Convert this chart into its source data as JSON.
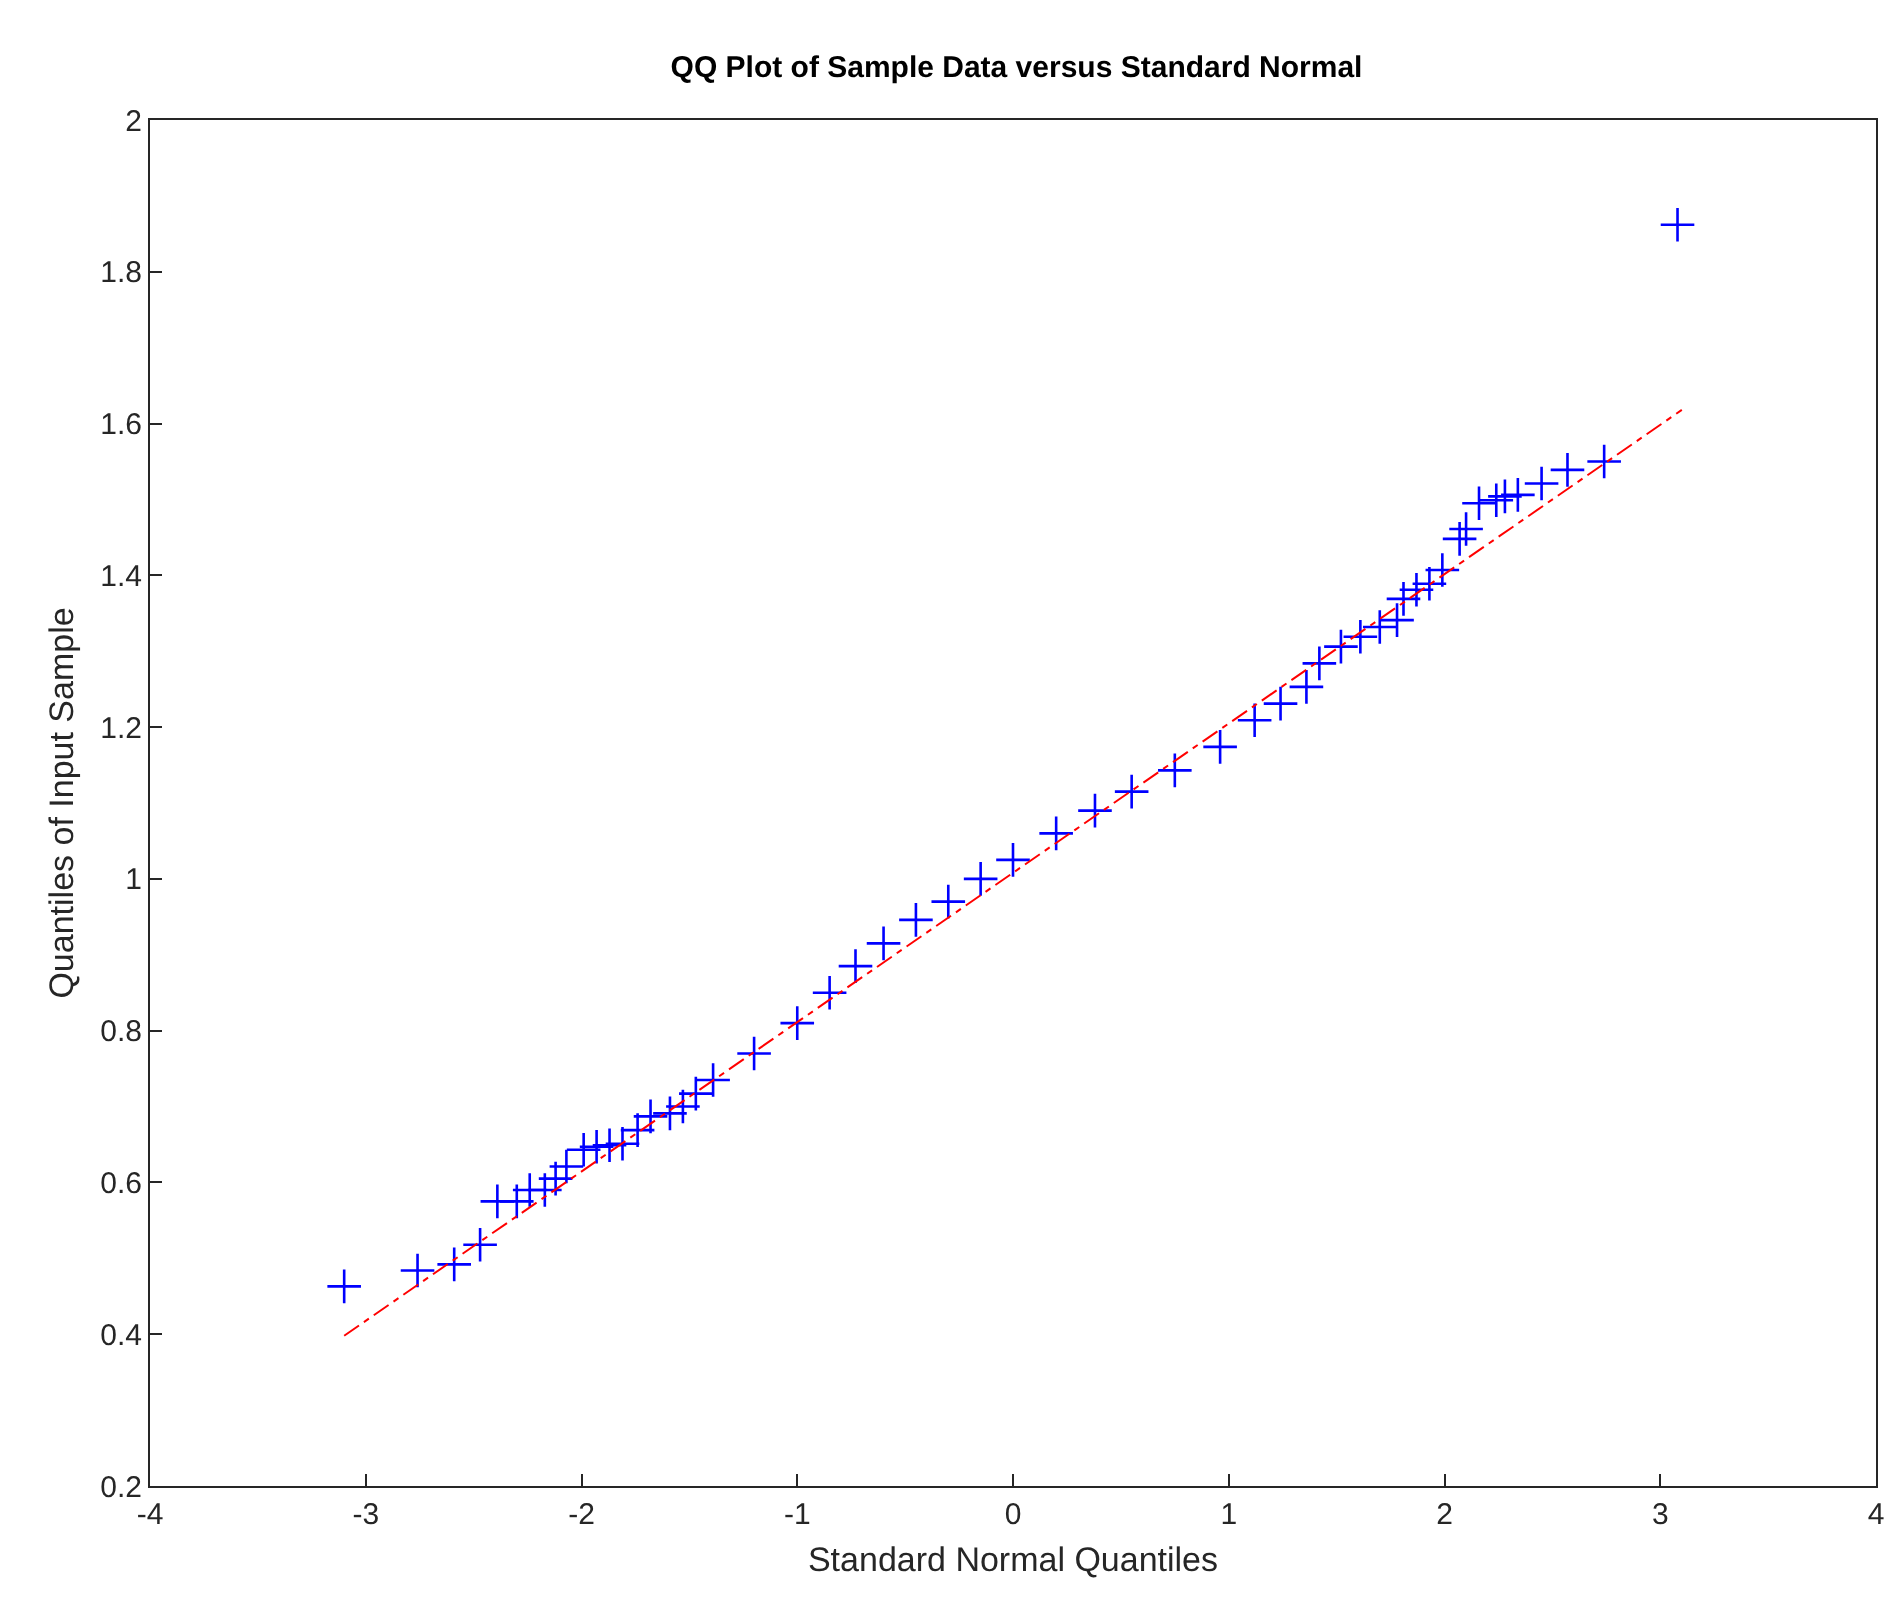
{
  "chart_data": {
    "type": "scatter",
    "title": "QQ Plot of Sample Data versus Standard Normal",
    "xlabel": "Standard Normal Quantiles",
    "ylabel": "Quantiles of Input Sample",
    "xlim": [
      -4,
      4
    ],
    "xticks": [
      -4,
      -3,
      -2,
      -1,
      0,
      1,
      2,
      3,
      4
    ],
    "ylim": [
      0.2,
      2
    ],
    "yticks": [
      0.2,
      0.4,
      0.6,
      0.8,
      1,
      1.2,
      1.4,
      1.6,
      1.8,
      2
    ],
    "grid": false,
    "legend": false,
    "series": [
      {
        "marker": "cross",
        "color": "#0000ff",
        "x": [
          -3.1,
          -2.76,
          -2.59,
          -2.47,
          -2.39,
          -2.3,
          -2.24,
          -2.17,
          -2.12,
          -2.07,
          -1.99,
          -1.93,
          -1.87,
          -1.81,
          -1.74,
          -1.68,
          -1.59,
          -1.53,
          -1.47,
          -1.39,
          -1.2,
          -1.0,
          -0.85,
          -0.73,
          -0.6,
          -0.45,
          -0.3,
          -0.15,
          0,
          0.2,
          0.38,
          0.55,
          0.75,
          0.96,
          1.12,
          1.24,
          1.36,
          1.42,
          1.52,
          1.61,
          1.7,
          1.78,
          1.81,
          1.87,
          1.93,
          1.99,
          2.07,
          2.1,
          2.16,
          2.24,
          2.28,
          2.34,
          2.45,
          2.57,
          2.74,
          3.08
        ],
        "values": [
          0.463,
          0.484,
          0.492,
          0.518,
          0.575,
          0.575,
          0.59,
          0.59,
          0.605,
          0.621,
          0.643,
          0.647,
          0.649,
          0.651,
          0.669,
          0.687,
          0.691,
          0.7,
          0.717,
          0.735,
          0.77,
          0.81,
          0.85,
          0.885,
          0.915,
          0.946,
          0.97,
          1.0,
          1.025,
          1.06,
          1.09,
          1.115,
          1.143,
          1.174,
          1.209,
          1.231,
          1.253,
          1.284,
          1.306,
          1.319,
          1.332,
          1.341,
          1.369,
          1.381,
          1.389,
          1.407,
          1.448,
          1.461,
          1.495,
          1.499,
          1.504,
          1.506,
          1.521,
          1.539,
          1.55,
          1.862
        ]
      },
      {
        "type": "line",
        "color": "#ff0000",
        "line_style": "dashed",
        "x": [
          -3.1,
          3.1
        ],
        "values": [
          0.398,
          1.618
        ]
      }
    ]
  }
}
